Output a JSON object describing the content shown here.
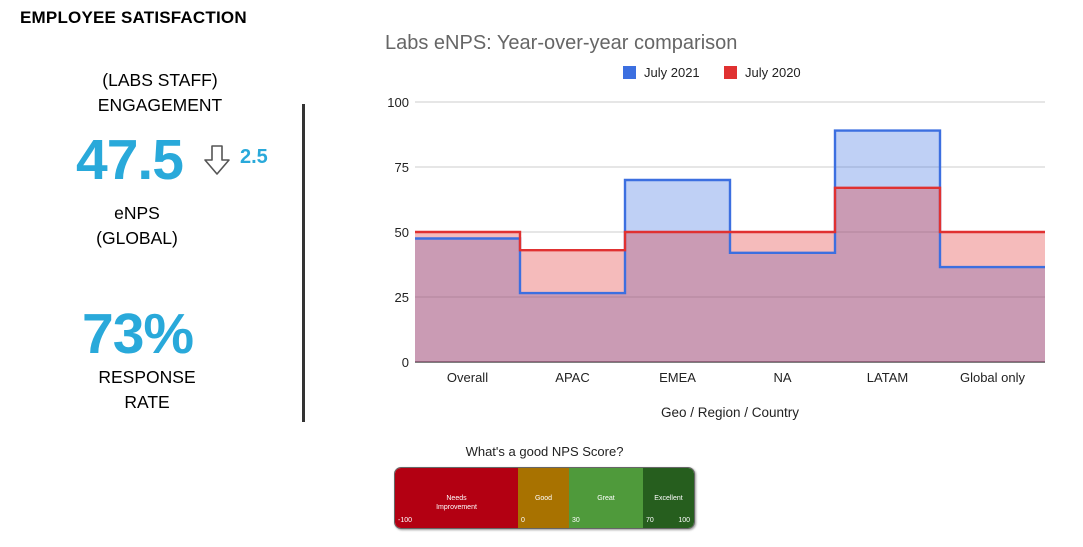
{
  "header": {
    "title": "EMPLOYEE SATISFACTION"
  },
  "kpis": {
    "engagement_label_1": "(LABS STAFF)",
    "engagement_label_2": "ENGAGEMENT",
    "enps_value": "47.5",
    "enps_change": "2.5",
    "enps_label_1": "eNPS",
    "enps_label_2": "(GLOBAL)",
    "response_value": "73%",
    "response_label_1": "RESPONSE",
    "response_label_2": "RATE"
  },
  "colors": {
    "accent": "#29a9da",
    "series_2021": "#3c6fe0",
    "series_2020": "#e03131",
    "needs_improvement": "#b30012",
    "good": "#a87200",
    "great": "#4f9a3b",
    "excellent": "#265e1e"
  },
  "chart_data": {
    "type": "area",
    "title": "Labs eNPS: Year-over-year comparison",
    "xlabel": "Geo / Region / Country",
    "ylabel": "",
    "categories": [
      "Overall",
      "APAC",
      "EMEA",
      "NA",
      "LATAM",
      "Global only"
    ],
    "series": [
      {
        "name": "July 2021",
        "values": [
          47.5,
          26.5,
          70,
          42,
          89,
          36.5
        ],
        "color": "#3c6fe0"
      },
      {
        "name": "July 2020",
        "values": [
          50,
          43,
          50,
          50,
          67,
          50
        ],
        "color": "#e03131"
      }
    ],
    "ylim": [
      0,
      100
    ],
    "yticks": [
      0,
      25,
      50,
      75,
      100
    ],
    "grid": true,
    "legend": "top-center",
    "stepped": true
  },
  "nps_scale": {
    "title": "What's a good NPS Score?",
    "bands": [
      {
        "label_1": "Needs",
        "label_2": "Improvement",
        "start": "-100",
        "end": ""
      },
      {
        "label_1": "Good",
        "label_2": "",
        "start": "0",
        "end": ""
      },
      {
        "label_1": "Great",
        "label_2": "",
        "start": "30",
        "end": ""
      },
      {
        "label_1": "Excellent",
        "label_2": "",
        "start": "70",
        "end": "100"
      }
    ]
  }
}
